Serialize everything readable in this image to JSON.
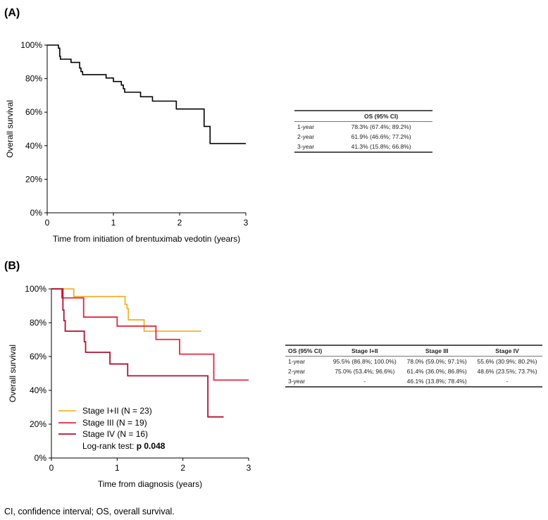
{
  "chart_data": [
    {
      "type": "line",
      "panel_label": "(A)",
      "xlabel": "Time from initiation of brentuximab vedotin (years)",
      "ylabel": "Overall survival",
      "xlim": [
        0,
        3
      ],
      "ylim": [
        0,
        100
      ],
      "x_ticks": [
        "0",
        "1",
        "2",
        "3"
      ],
      "y_ticks": [
        "0%",
        "20%",
        "40%",
        "60%",
        "80%",
        "100%"
      ],
      "grid": false,
      "step": true,
      "series": [
        {
          "color": "#000000",
          "points": [
            [
              0,
              100
            ],
            [
              0.17,
              98.2
            ],
            [
              0.19,
              93.3
            ],
            [
              0.2,
              91.6
            ],
            [
              0.36,
              89.7
            ],
            [
              0.49,
              86.3
            ],
            [
              0.51,
              84.2
            ],
            [
              0.535,
              82.4
            ],
            [
              0.89,
              80.4
            ],
            [
              1.0,
              78.3
            ],
            [
              1.12,
              76.2
            ],
            [
              1.15,
              74.0
            ],
            [
              1.17,
              71.9
            ],
            [
              1.41,
              69.2
            ],
            [
              1.59,
              66.6
            ],
            [
              1.95,
              61.9
            ],
            [
              2.37,
              51.5
            ],
            [
              2.46,
              41.3
            ],
            [
              3.0,
              41.3
            ]
          ]
        }
      ],
      "table": {
        "header": [
          "",
          "OS (95% CI)"
        ],
        "rows": [
          [
            "1-year",
            "78.3% (67.4%; 89.2%)"
          ],
          [
            "2-year",
            "61.9% (46.6%; 77.2%)"
          ],
          [
            "3-year",
            "41.3% (15.8%; 66.8%)"
          ]
        ]
      }
    },
    {
      "type": "line",
      "panel_label": "(B)",
      "xlabel": "Time from diagnosis (years)",
      "ylabel": "Overall survival",
      "xlim": [
        0,
        3
      ],
      "ylim": [
        0,
        100
      ],
      "x_ticks": [
        "0",
        "1",
        "2",
        "3"
      ],
      "y_ticks": [
        "0%",
        "20%",
        "40%",
        "60%",
        "80%",
        "100%"
      ],
      "grid": false,
      "step": true,
      "legend_placement": "bottom-left",
      "series": [
        {
          "name": "Stage I+II (N = 23)",
          "color": "#f2b233",
          "points": [
            [
              0,
              100
            ],
            [
              0.34,
              95.5
            ],
            [
              1.12,
              90.9
            ],
            [
              1.15,
              88.4
            ],
            [
              1.17,
              81.7
            ],
            [
              1.41,
              75.0
            ],
            [
              2.28,
              75.0
            ]
          ]
        },
        {
          "name": "Stage III (N = 19)",
          "color": "#e8263c",
          "points": [
            [
              0,
              100
            ],
            [
              0.16,
              94.7
            ],
            [
              0.49,
              83.3
            ],
            [
              1.0,
              78.0
            ],
            [
              1.59,
              70.1
            ],
            [
              1.95,
              61.4
            ],
            [
              2.47,
              46.1
            ],
            [
              3.0,
              46.1
            ]
          ]
        },
        {
          "name": "Stage IV (N = 16)",
          "color": "#b3122e",
          "points": [
            [
              0,
              100
            ],
            [
              0.175,
              87.5
            ],
            [
              0.19,
              81.2
            ],
            [
              0.21,
              75.0
            ],
            [
              0.5,
              68.75
            ],
            [
              0.52,
              62.5
            ],
            [
              0.89,
              55.6
            ],
            [
              1.16,
              48.6
            ],
            [
              2.38,
              24.3
            ],
            [
              2.62,
              24.3
            ]
          ]
        }
      ],
      "annotation": {
        "prefix": "Log-rank test: ",
        "p_label": "p",
        "p_value": "0.048"
      },
      "table": {
        "header": [
          "OS (95% CI)",
          "Stage I+II",
          "Stage III",
          "Stage IV"
        ],
        "rows": [
          [
            "1-year",
            "95.5% (86.8%; 100.0%)",
            "78.0% (59.0%; 97.1%)",
            "55.6% (30.9%; 80.2%)"
          ],
          [
            "2-year",
            "75.0% (53.4%; 96.6%)",
            "61.4% (36.0%; 86.8%)",
            "48.6% (23.5%; 73.7%)"
          ],
          [
            "3-year",
            "-",
            "46.1% (13.8%; 78.4%)",
            "-"
          ]
        ]
      }
    }
  ],
  "footnote": "CI, confidence interval; OS, overall survival."
}
